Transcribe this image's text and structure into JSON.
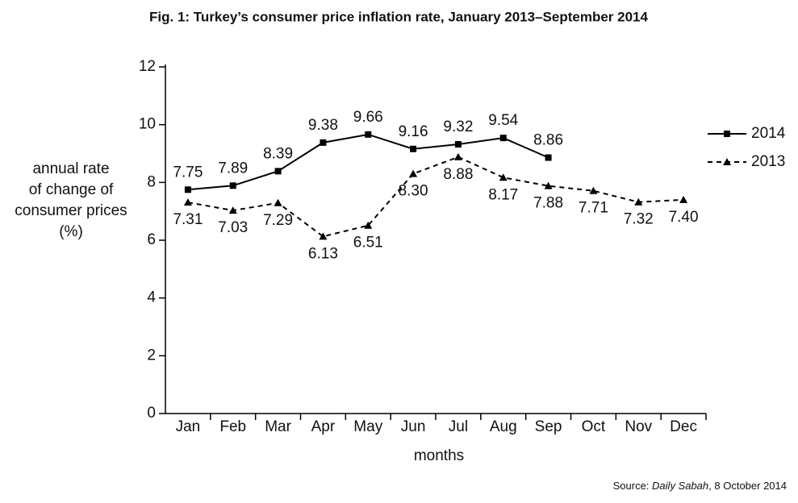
{
  "chart_data": {
    "type": "line",
    "title": "Fig. 1: Turkey’s consumer price inflation rate, January 2013–September 2014",
    "y_label": [
      "annual rate",
      "of change of",
      "consumer prices",
      "(%)"
    ],
    "x_label": "months",
    "source": {
      "prefix": "Source:",
      "name": "Daily Sabah",
      "suffix": ", 8 October 2014"
    },
    "categories": [
      "Jan",
      "Feb",
      "Mar",
      "Apr",
      "May",
      "Jun",
      "Jul",
      "Aug",
      "Sep",
      "Oct",
      "Nov",
      "Dec"
    ],
    "series": [
      {
        "name": "2014",
        "color": "#000000",
        "dash": false,
        "marker": "square",
        "values": [
          7.75,
          7.89,
          8.39,
          9.38,
          9.66,
          9.16,
          9.32,
          9.54,
          8.86,
          null,
          null,
          null
        ],
        "value_labels": [
          "7.75",
          "7.89",
          "8.39",
          "9.38",
          "9.66",
          "9.16",
          "9.32",
          "9.54",
          "8.86",
          null,
          null,
          null
        ]
      },
      {
        "name": "2013",
        "color": "#000000",
        "dash": true,
        "marker": "triangle",
        "values": [
          7.31,
          7.03,
          7.29,
          6.13,
          6.51,
          8.3,
          8.88,
          8.17,
          7.88,
          7.71,
          7.32,
          7.4
        ],
        "value_labels": [
          "7.31",
          "7.03",
          "7.29",
          "6.13",
          "6.51",
          "8.30",
          "8.88",
          "8.17",
          "7.88",
          "7.71",
          "7.32",
          "7.40"
        ]
      }
    ],
    "ylim": [
      0,
      12
    ],
    "yticks": [
      0,
      2,
      4,
      6,
      8,
      10,
      12
    ],
    "grid": false,
    "legend": "right"
  }
}
